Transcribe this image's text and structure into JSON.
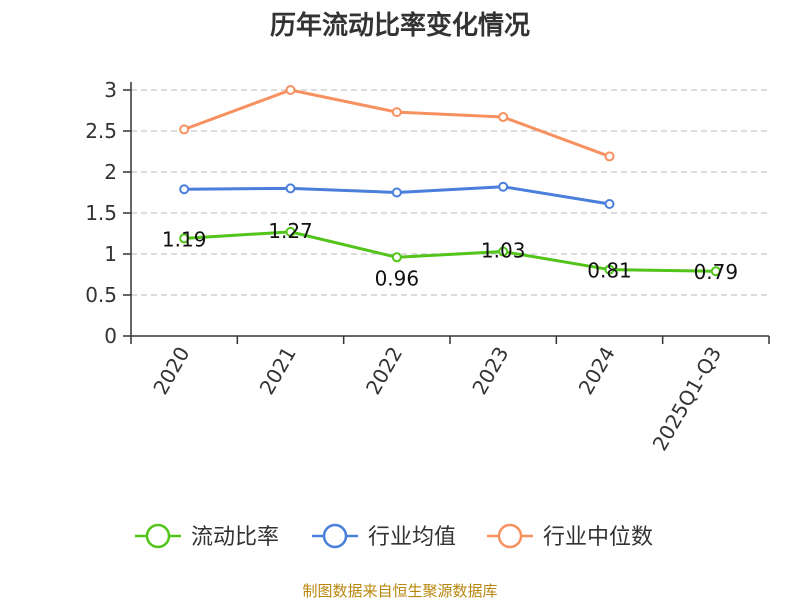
{
  "chart_data": {
    "type": "line",
    "title": "历年流动比率变化情况",
    "categories": [
      "2020",
      "2021",
      "2022",
      "2023",
      "2024",
      "2025Q1-Q3"
    ],
    "ylim": [
      0,
      3
    ],
    "yticks": [
      "0",
      "0.5",
      "1",
      "1.5",
      "2",
      "2.5",
      "3"
    ],
    "grid": true,
    "legend_position": "bottom",
    "series": [
      {
        "name": "流动比率",
        "color": "#52c41a",
        "values": [
          1.19,
          1.27,
          0.96,
          1.03,
          0.81,
          0.79
        ],
        "labels": [
          "1.19",
          "1.27",
          "0.96",
          "1.03",
          "0.81",
          "0.79"
        ]
      },
      {
        "name": "行业均值",
        "color": "#4a7fdc",
        "values": [
          1.79,
          1.8,
          1.75,
          1.82,
          1.61,
          null
        ]
      },
      {
        "name": "行业中位数",
        "color": "#f89160",
        "values": [
          2.52,
          3.0,
          2.73,
          2.67,
          2.19,
          null
        ]
      }
    ]
  },
  "source": "制图数据来自恒生聚源数据库"
}
